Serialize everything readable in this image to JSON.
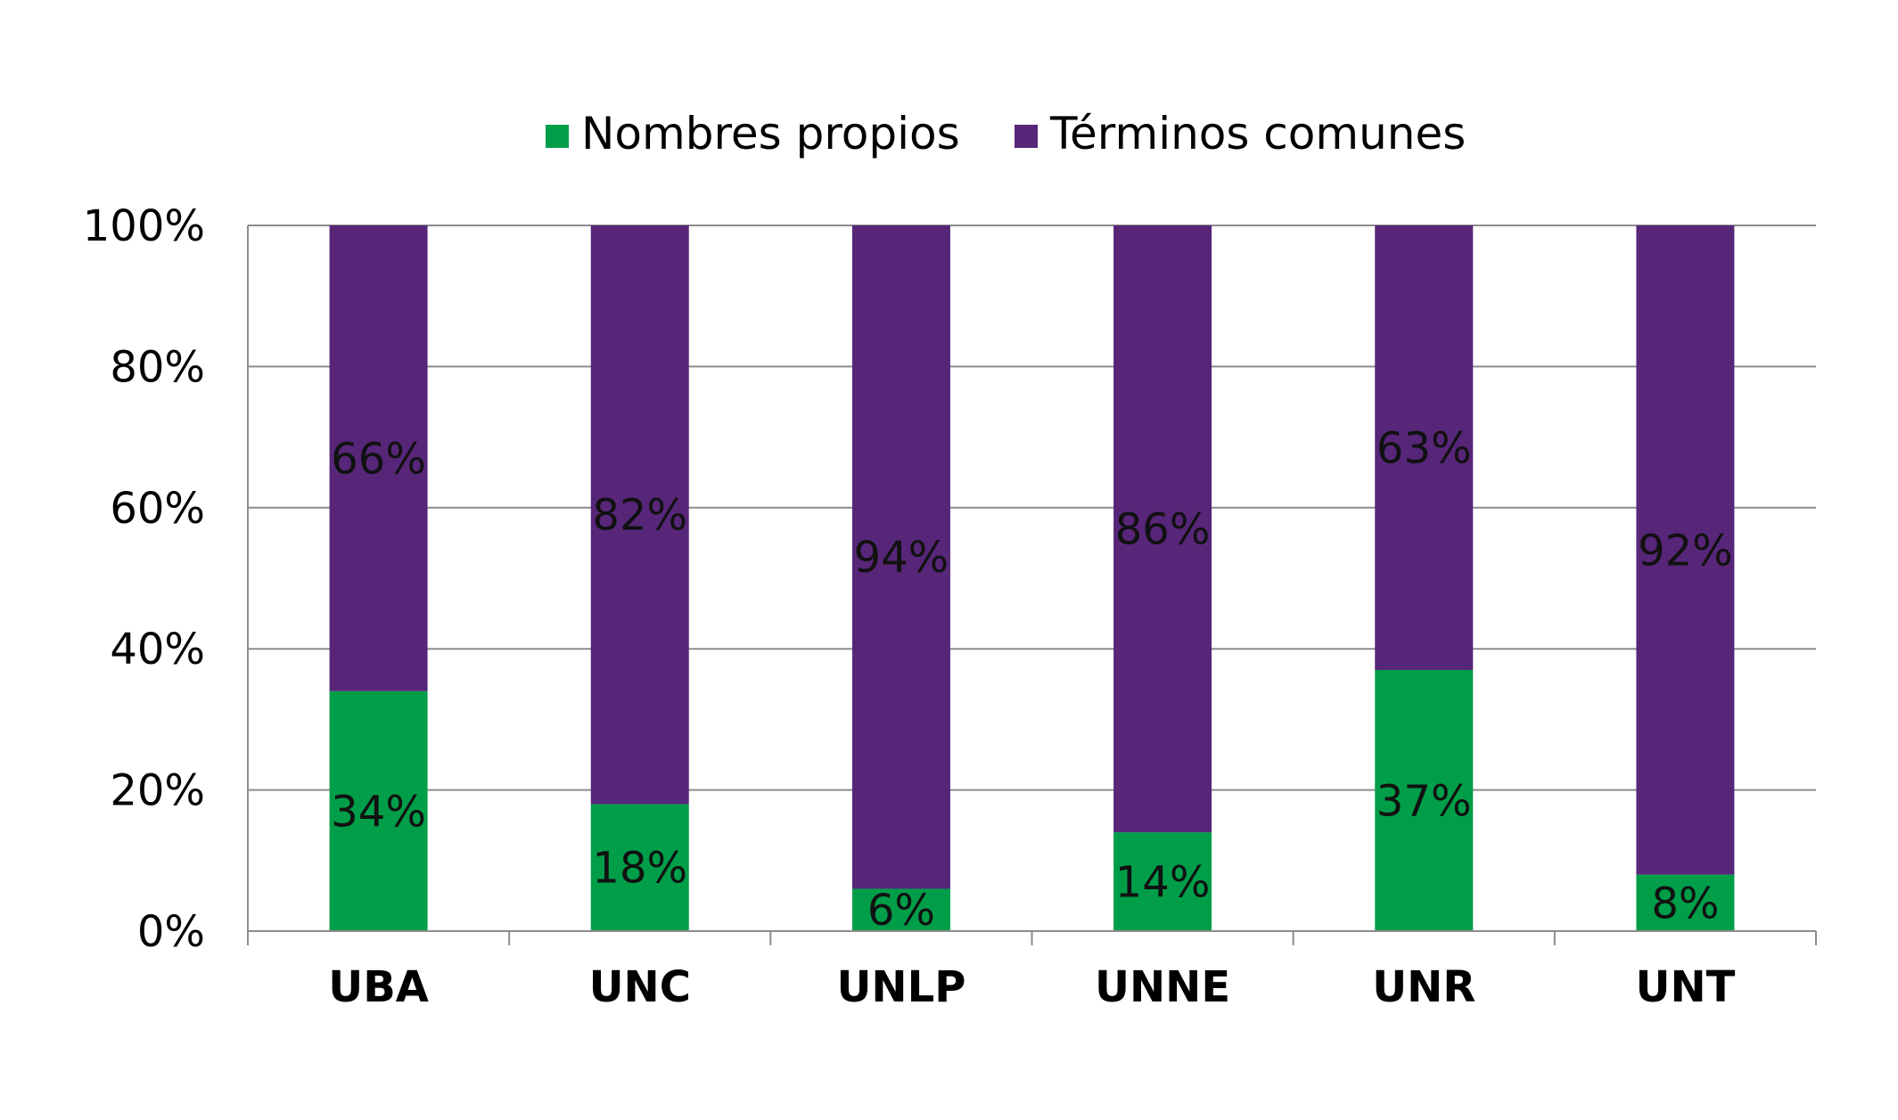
{
  "chart_data": {
    "type": "bar",
    "stacked": true,
    "normalized": true,
    "categories": [
      "UBA",
      "UNC",
      "UNLP",
      "UNNE",
      "UNR",
      "UNT"
    ],
    "series": [
      {
        "name": "Nombres propios",
        "values": [
          34,
          18,
          6,
          14,
          37,
          8
        ],
        "labels": [
          "34%",
          "18%",
          "6%",
          "14%",
          "37%",
          "8%"
        ]
      },
      {
        "name": "Términos comunes",
        "values": [
          66,
          82,
          94,
          86,
          63,
          92
        ],
        "labels": [
          "66%",
          "82%",
          "94%",
          "86%",
          "63%",
          "92%"
        ]
      }
    ],
    "colors": {
      "Nombres propios": "#009e49",
      "Términos comunes": "#572679"
    },
    "yticks": [
      "0%",
      "20%",
      "40%",
      "60%",
      "80%",
      "100%"
    ],
    "ylim": [
      0,
      100
    ],
    "grid": true,
    "legend_position": "top"
  }
}
